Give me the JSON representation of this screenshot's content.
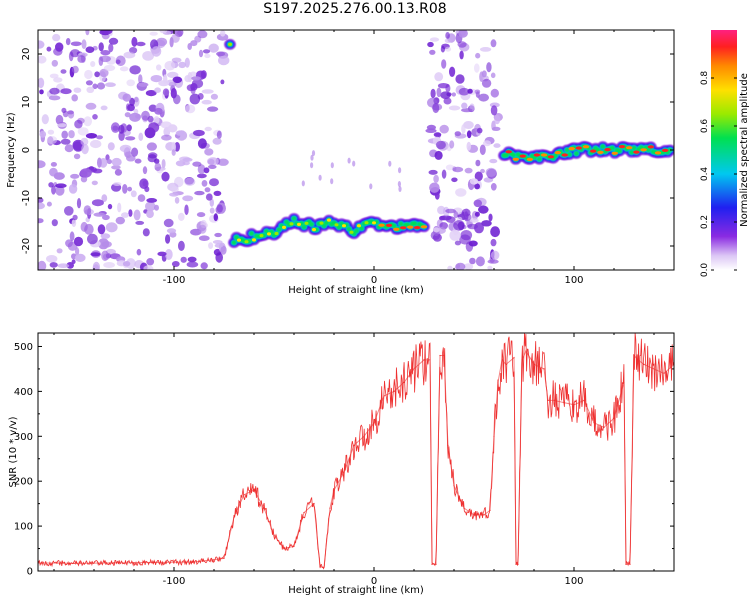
{
  "title": "S197.2025.276.00.13.R08",
  "chart_data": [
    {
      "type": "heatmap",
      "xlabel": "Height of straight line (km)",
      "ylabel": "Frequency (Hz)",
      "xlim": [
        -168,
        150
      ],
      "ylim": [
        -25,
        25
      ],
      "xticks": [
        -100,
        0,
        100
      ],
      "yticks": [
        -20,
        -10,
        0,
        10,
        20
      ],
      "colorbar": {
        "label": "Normalized spectral amplitude",
        "range": [
          0,
          1
        ],
        "ticks": [
          0.0,
          0.2,
          0.4,
          0.6,
          0.8
        ]
      },
      "noise_regions": [
        [
          -168,
          -75
        ],
        [
          28,
          63
        ]
      ],
      "ridge": [
        {
          "x": -72,
          "y": 22
        },
        {
          "x": -70,
          "y": -19
        },
        {
          "x": -60,
          "y": -18
        },
        {
          "x": -50,
          "y": -17
        },
        {
          "x": -40,
          "y": -15
        },
        {
          "x": -30,
          "y": -16
        },
        {
          "x": -20,
          "y": -15
        },
        {
          "x": -10,
          "y": -17
        },
        {
          "x": 0,
          "y": -15
        },
        {
          "x": 10,
          "y": -16
        },
        {
          "x": 25,
          "y": -16
        },
        {
          "x": 65,
          "y": -1
        },
        {
          "x": 85,
          "y": -1.5
        },
        {
          "x": 100,
          "y": 0
        },
        {
          "x": 130,
          "y": 0
        },
        {
          "x": 148,
          "y": 0
        }
      ]
    },
    {
      "type": "line",
      "xlabel": "Height of straight line (km)",
      "ylabel": "SNR (10 * v/v)",
      "xlim": [
        -168,
        150
      ],
      "ylim": [
        0,
        530
      ],
      "xticks": [
        -100,
        0,
        100
      ],
      "yticks": [
        0,
        100,
        200,
        300,
        400,
        500
      ],
      "series": [
        {
          "name": "SNR",
          "color": "#ee3030",
          "x": [
            -168,
            -150,
            -130,
            -110,
            -90,
            -75,
            -70,
            -65,
            -60,
            -55,
            -50,
            -45,
            -40,
            -35,
            -30,
            -27,
            -25,
            -22,
            -20,
            -15,
            -10,
            -5,
            0,
            5,
            10,
            15,
            20,
            25,
            28,
            29,
            31,
            33,
            35,
            37,
            40,
            45,
            50,
            55,
            58,
            60,
            62,
            64,
            66,
            70,
            71,
            72,
            74,
            76,
            80,
            85,
            87,
            90,
            95,
            100,
            105,
            110,
            115,
            120,
            125,
            126,
            127,
            128,
            130,
            132,
            135,
            140,
            145,
            150
          ],
          "y": [
            18,
            17,
            18,
            19,
            20,
            28,
            120,
            170,
            180,
            140,
            80,
            50,
            55,
            130,
            150,
            10,
            8,
            140,
            180,
            220,
            280,
            300,
            330,
            390,
            400,
            420,
            450,
            470,
            470,
            15,
            15,
            480,
            480,
            280,
            190,
            140,
            125,
            125,
            135,
            300,
            420,
            470,
            460,
            475,
            15,
            15,
            470,
            490,
            460,
            450,
            380,
            380,
            375,
            370,
            380,
            330,
            320,
            340,
            420,
            15,
            15,
            15,
            480,
            470,
            460,
            450,
            440,
            460
          ]
        }
      ]
    }
  ]
}
